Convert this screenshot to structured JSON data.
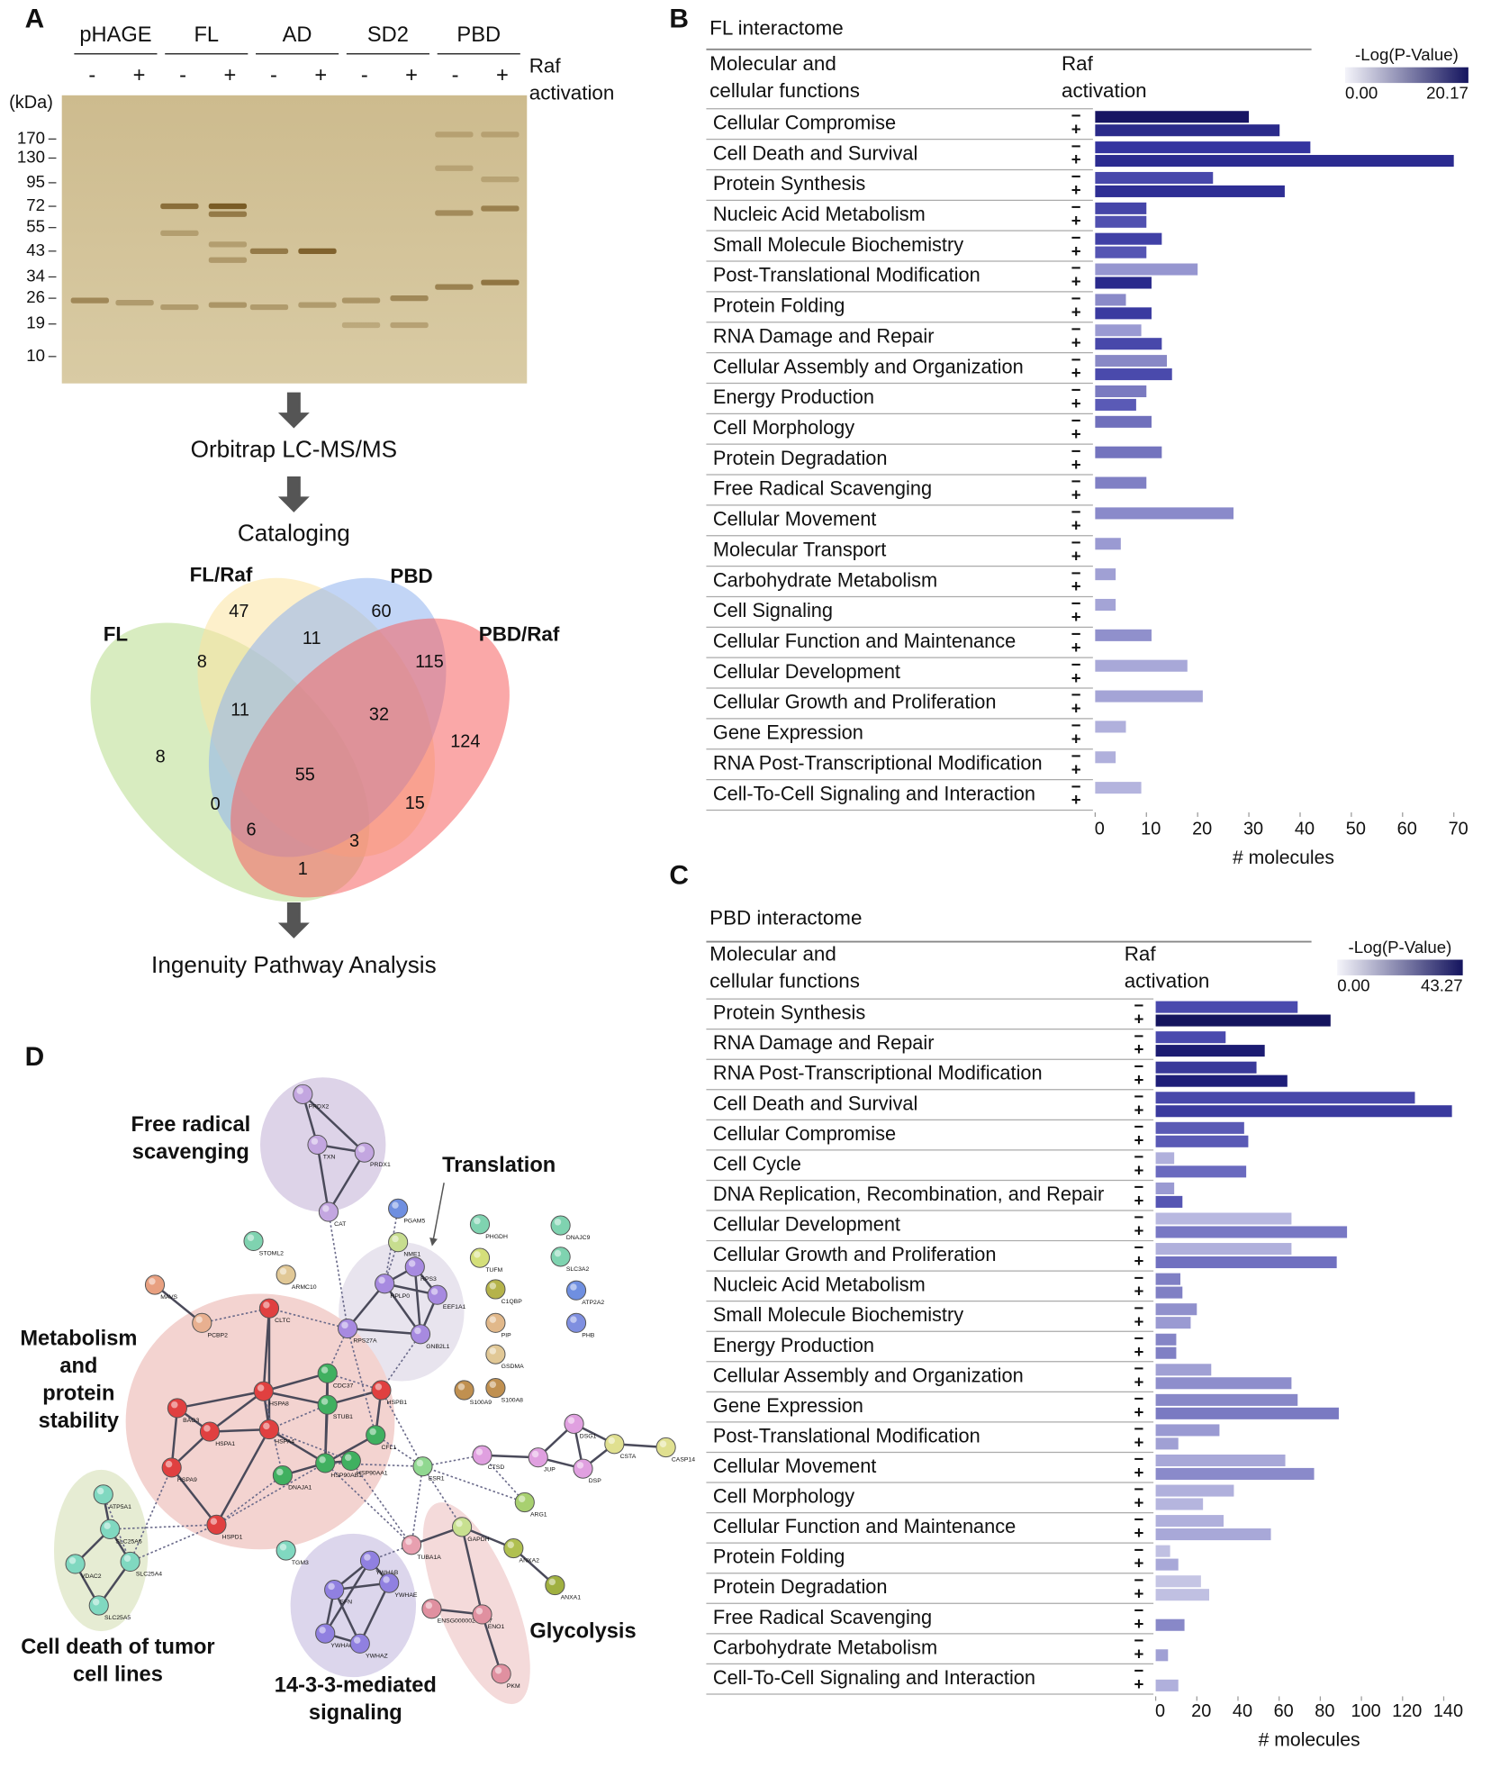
{
  "panel_labels": [
    "A",
    "B",
    "C",
    "D"
  ],
  "panel_a": {
    "lanes": [
      "pHAGE",
      "FL",
      "AD",
      "SD2",
      "PBD"
    ],
    "signs": [
      "-",
      "+"
    ],
    "raf_label": [
      "Raf",
      "activation"
    ],
    "unit": "(kDa)",
    "markers": [
      170,
      130,
      95,
      72,
      55,
      43,
      34,
      26,
      19,
      10
    ],
    "steps": [
      "Orbitrap  LC-MS/MS",
      "Cataloging",
      "Ingenuity  Pathway  Analysis"
    ],
    "venn": {
      "sets": [
        "FL",
        "FL/Raf",
        "PBD",
        "PBD/Raf"
      ],
      "counts": [
        47,
        60,
        8,
        11,
        115,
        11,
        32,
        8,
        124,
        55,
        0,
        15,
        6,
        3,
        1
      ]
    }
  },
  "chart_data": [
    {
      "type": "bar",
      "orientation": "horizontal",
      "title": "FL interactome",
      "header": [
        "Molecular and",
        "cellular functions"
      ],
      "group_header": [
        "Raf",
        "activation"
      ],
      "categories": [
        "Cellular Compromise",
        "Cell Death and Survival",
        "Protein Synthesis",
        "Nucleic Acid Metabolism",
        "Small Molecule Biochemistry",
        "Post-Translational Modification",
        "Protein Folding",
        "RNA Damage and Repair",
        "Cellular Assembly and Organization",
        "Energy Production",
        "Cell Morphology",
        "Protein Degradation",
        "Free Radical Scavenging",
        "Cellular Movement",
        "Molecular Transport",
        "Carbohydrate Metabolism",
        "Cell Signaling",
        "Cellular Function and Maintenance",
        "Cellular Development",
        "Cellular Growth and Proliferation",
        "Gene Expression",
        "RNA Post-Transcriptional Modification",
        "Cell-To-Cell Signaling and Interaction"
      ],
      "series": [
        {
          "name": "−",
          "values": [
            30,
            42,
            23,
            10,
            13,
            20,
            6,
            9,
            14,
            10,
            11,
            13,
            10,
            27,
            5,
            4,
            4,
            11,
            18,
            21,
            6,
            4,
            9
          ],
          "colors": [
            "#171563",
            "#3434a0",
            "#4848ab",
            "#4545a8",
            "#4040a6",
            "#9696d0",
            "#8a8ac8",
            "#9a9ad2",
            "#8888c6",
            "#7a7ac0",
            "#7070bc",
            "#7474be",
            "#8080c4",
            "#8a8aca",
            "#9a9ad2",
            "#a0a0d4",
            "#a4a4d6",
            "#9090cc",
            "#a8a8d8",
            "#a4a4d6",
            "#b0b0dc",
            "#b0b0dc",
            "#b4b4de"
          ]
        },
        {
          "name": "+",
          "values": [
            36,
            70,
            37,
            10,
            10,
            11,
            11,
            13,
            15,
            8,
            0,
            0,
            0,
            0,
            0,
            0,
            0,
            0,
            0,
            0,
            0,
            0,
            0
          ],
          "colors": [
            "#2a2a8a",
            "#2b2b90",
            "#2e2e94",
            "#5050b0",
            "#5555b3",
            "#2a2a8c",
            "#3a3aa0",
            "#4848aa",
            "#4a4aac",
            "#5a5ab6",
            "#7070bc",
            "#7474be",
            "#8080c4",
            "#8a8aca",
            "#9a9ad2",
            "#a0a0d4",
            "#a4a4d6",
            "#9090cc",
            "#a8a8d8",
            "#a4a4d6",
            "#b0b0dc",
            "#b0b0dc",
            "#b4b4de"
          ]
        }
      ],
      "xlim": [
        0,
        70
      ],
      "xticks": [
        0,
        10,
        20,
        30,
        40,
        50,
        60,
        70
      ],
      "xlabel": "# molecules",
      "colorbar": {
        "title": "-Log(P-Value)",
        "clim": [
          0,
          20.17
        ],
        "ticks": [
          {
            "value": 0,
            "label": "0.00"
          },
          20.17
        ],
        "colors": [
          "#f4f4fa",
          "#14145e"
        ]
      }
    },
    {
      "type": "bar",
      "orientation": "horizontal",
      "title": "PBD interactome",
      "header": [
        "Molecular and",
        "cellular functions"
      ],
      "group_header": [
        "Raf",
        "activation"
      ],
      "categories": [
        "Protein Synthesis",
        "RNA Damage and Repair",
        "RNA Post-Transcriptional Modification",
        "Cell Death and Survival",
        "Cellular Compromise",
        "Cell Cycle",
        "DNA Replication, Recombination, and Repair",
        "Cellular Development",
        "Cellular Growth and Proliferation",
        "Nucleic Acid Metabolism",
        "Small Molecule Biochemistry",
        "Energy Production",
        "Cellular Assembly and Organization",
        "Gene Expression",
        "Post-Translational Modification",
        "Cellular Movement",
        "Cell Morphology",
        "Cellular Function and Maintenance",
        "Protein Folding",
        "Protein Degradation",
        "Free Radical Scavenging",
        "Carbohydrate Metabolism",
        "Cell-To-Cell Signaling and Interaction"
      ],
      "series": [
        {
          "name": "−",
          "values": [
            69,
            34,
            49,
            126,
            43,
            9,
            9,
            66,
            66,
            12,
            20,
            10,
            27,
            69,
            31,
            63,
            38,
            33,
            7,
            22,
            0,
            0,
            0
          ],
          "colors": [
            "#4a4aae",
            "#4a4aae",
            "#3a3a9a",
            "#4848aa",
            "#5a5ab5",
            "#b0b0dc",
            "#9a9ad2",
            "#b8b8e0",
            "#b0b0dc",
            "#8080c4",
            "#9090cc",
            "#8585c6",
            "#a0a0d4",
            "#8888c8",
            "#9a9ad2",
            "#a8a8d8",
            "#b0b0dc",
            "#b0b0dc",
            "#c0c0e2",
            "#c5c5e4",
            "#c0c0e2",
            "#c0c0e2",
            "#c0c0e2"
          ]
        },
        {
          "name": "+",
          "values": [
            85,
            53,
            64,
            144,
            45,
            44,
            13,
            93,
            88,
            13,
            17,
            10,
            66,
            89,
            11,
            77,
            23,
            56,
            11,
            26,
            14,
            6,
            11
          ],
          "colors": [
            "#14145e",
            "#1c1c72",
            "#1e1e78",
            "#3a3a9e",
            "#5a5ab5",
            "#6a6abf",
            "#5555b3",
            "#7878c4",
            "#7070c0",
            "#8080c4",
            "#9a9ad2",
            "#8080c4",
            "#8e8ecc",
            "#7a7ac2",
            "#a0a0d4",
            "#8a8aca",
            "#b5b5de",
            "#a8a8d8",
            "#a8a8d8",
            "#c0c0e2",
            "#8888c8",
            "#a0a0d4",
            "#b0b0dc"
          ]
        }
      ],
      "xlim": [
        0,
        140
      ],
      "xticks": [
        0,
        20,
        40,
        60,
        80,
        100,
        120,
        140
      ],
      "xlabel": "# molecules",
      "colorbar": {
        "title": "-Log(P-Value)",
        "clim": [
          0,
          43.27
        ],
        "ticks": [
          {
            "value": 0,
            "label": "0.00"
          },
          43.27
        ],
        "colors": [
          "#f4f4fa",
          "#14145e"
        ]
      }
    }
  ],
  "panel_d": {
    "nodes": [
      {
        "label": "PRDX2",
        "color": "#c3a6e0"
      },
      {
        "label": "TXN",
        "color": "#c3a6e0"
      },
      {
        "label": "PRDX1",
        "color": "#c3a6e0"
      },
      {
        "label": "CAT",
        "color": "#c3a6e0"
      },
      {
        "label": "PGAM5",
        "color": "#6f8fe0"
      },
      {
        "label": "NME1",
        "color": "#c7dd8f"
      },
      {
        "label": "STOML2",
        "color": "#7fd3b0"
      },
      {
        "label": "ARMC10",
        "color": "#e1c896"
      },
      {
        "label": "PHGDH",
        "color": "#7fd3b0"
      },
      {
        "label": "TUFM",
        "color": "#d4df7a"
      },
      {
        "label": "DNAJC9",
        "color": "#7fd3b0"
      },
      {
        "label": "SLC3A2",
        "color": "#7fd3b0"
      },
      {
        "label": "C1QBP",
        "color": "#b5b34a"
      },
      {
        "label": "ATP2A2",
        "color": "#6f8fe0"
      },
      {
        "label": "PIP",
        "color": "#e1b88a"
      },
      {
        "label": "PHB",
        "color": "#7f8fe0"
      },
      {
        "label": "GSDMA",
        "color": "#e1c896"
      },
      {
        "label": "S100A8",
        "color": "#c09050"
      },
      {
        "label": "S100A9",
        "color": "#c09050"
      },
      {
        "label": "RPS3",
        "color": "#a78ae0"
      },
      {
        "label": "RPLP0",
        "color": "#a78ae0"
      },
      {
        "label": "EEF1A1",
        "color": "#a78ae0"
      },
      {
        "label": "GNB2L1",
        "color": "#a78ae0"
      },
      {
        "label": "RPS27A",
        "color": "#a78ae0"
      },
      {
        "label": "MAVS",
        "color": "#e8a080"
      },
      {
        "label": "PCBP2",
        "color": "#e8b090"
      },
      {
        "label": "CLTC",
        "color": "#e04040"
      },
      {
        "label": "CDC37",
        "color": "#40b060"
      },
      {
        "label": "HSPA8",
        "color": "#e04040"
      },
      {
        "label": "STUB1",
        "color": "#40b060"
      },
      {
        "label": "HSPB1",
        "color": "#e04040"
      },
      {
        "label": "BAG3",
        "color": "#e04040"
      },
      {
        "label": "HSPA1",
        "color": "#e04040"
      },
      {
        "label": "HSPA4",
        "color": "#e04040"
      },
      {
        "label": "CFL1",
        "color": "#40b060"
      },
      {
        "label": "HSPA9",
        "color": "#e04040"
      },
      {
        "label": "HSPD1",
        "color": "#e04040"
      },
      {
        "label": "HSP90AB1",
        "color": "#40b060"
      },
      {
        "label": "DNAJA1",
        "color": "#40b060"
      },
      {
        "label": "HSP90AA1",
        "color": "#40b060"
      },
      {
        "label": "ESR1",
        "color": "#90d890"
      },
      {
        "label": "CTSD",
        "color": "#e0a0e0"
      },
      {
        "label": "JUP",
        "color": "#e0a0e0"
      },
      {
        "label": "DSG1",
        "color": "#e0a0e0"
      },
      {
        "label": "DSP",
        "color": "#e0a0e0"
      },
      {
        "label": "CSTA",
        "color": "#e0e090"
      },
      {
        "label": "CASP14",
        "color": "#e0e090"
      },
      {
        "label": "ARG1",
        "color": "#a8d070"
      },
      {
        "label": "GAPDH",
        "color": "#c8e090"
      },
      {
        "label": "TUBA1A",
        "color": "#e8a0b0"
      },
      {
        "label": "ANXA2",
        "color": "#b0c050"
      },
      {
        "label": "ANXA1",
        "color": "#a0b040"
      },
      {
        "label": "YWHAB",
        "color": "#9080e0"
      },
      {
        "label": "YWHAE",
        "color": "#9080e0"
      },
      {
        "label": "SFN",
        "color": "#9080e0"
      },
      {
        "label": "YWHAQ",
        "color": "#9080e0"
      },
      {
        "label": "YWHAZ",
        "color": "#9080e0"
      },
      {
        "label": "ENSG00000258947",
        "color": "#e090a0"
      },
      {
        "label": "ENO1",
        "color": "#e090a0"
      },
      {
        "label": "PKM",
        "color": "#e090a0"
      },
      {
        "label": "ATP5A1",
        "color": "#80d8c0"
      },
      {
        "label": "SLC25A6",
        "color": "#80d8c0"
      },
      {
        "label": "SLC25A4",
        "color": "#80d8c0"
      },
      {
        "label": "VDAC2",
        "color": "#80d8c0"
      },
      {
        "label": "SLC25A5",
        "color": "#80d8c0"
      },
      {
        "label": "TGM3",
        "color": "#80d8c0"
      }
    ],
    "clusters": [
      {
        "lines": [
          "Free radical",
          "scavenging"
        ]
      },
      {
        "lines": [
          "Translation"
        ]
      },
      {
        "lines": [
          "Metabolism",
          "and",
          "protein",
          "stability"
        ]
      },
      {
        "lines": [
          "Cell death of tumor",
          "cell lines"
        ]
      },
      {
        "lines": [
          "14-3-3-mediated",
          "signaling"
        ]
      },
      {
        "lines": [
          "Glycolysis"
        ]
      }
    ]
  }
}
